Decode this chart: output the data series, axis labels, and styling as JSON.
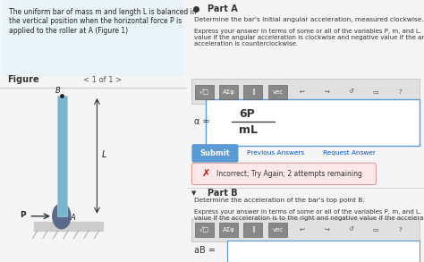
{
  "bg_color": "#f5f5f5",
  "right_bg": "#ffffff",
  "left_panel_bg": "#e8f4f8",
  "left_panel_text": "The uniform bar of mass m and length L is balanced in\nthe vertical position when the horizontal force P is\napplied to the roller at A (Figure 1)",
  "figure_label": "Figure",
  "page_label": "1 of 1",
  "part_a_title": "Part A",
  "part_a_q1": "Determine the bar's initial angular acceleration, measured clockwise.",
  "part_a_q2": "Express your answer in terms of some or all of the variables P, m, and L. Enter positive\nvalue if the angular acceleration is clockwise and negative value if the angular\nacceleration is counterclockwise.",
  "answer_numerator": "6P",
  "answer_denominator": "mL",
  "alpha_label": "α =",
  "submit_color": "#5b9bd5",
  "submit_text": "Submit",
  "prev_ans_text": "Previous Answers",
  "req_ans_text": "Request Answer",
  "incorrect_text": "Incorrect; Try Again; 2 attempts remaining",
  "incorrect_bg": "#fce8e8",
  "incorrect_x_color": "#cc0000",
  "part_b_title": "Part B",
  "part_b_q1": "Determine the acceleration of the bar's top point B.",
  "part_b_q2": "Express your answer in terms of some or all of the variables P, m, and L. Enter positive\nvalue if the acceleration is to the right and negative value if the acceleration is to the left.",
  "ab_label": "aB =",
  "toolbar_bg": "#888888",
  "input_border": "#5b9bd5",
  "divider_color": "#cccccc",
  "bar_color": "#7ab5d0",
  "bar_color_edge": "#a8cfe0",
  "ground_color": "#cccccc",
  "ball_color": "#5a6a8a",
  "label_B": "B",
  "label_A": "A",
  "label_L": "L",
  "label_P": "P"
}
